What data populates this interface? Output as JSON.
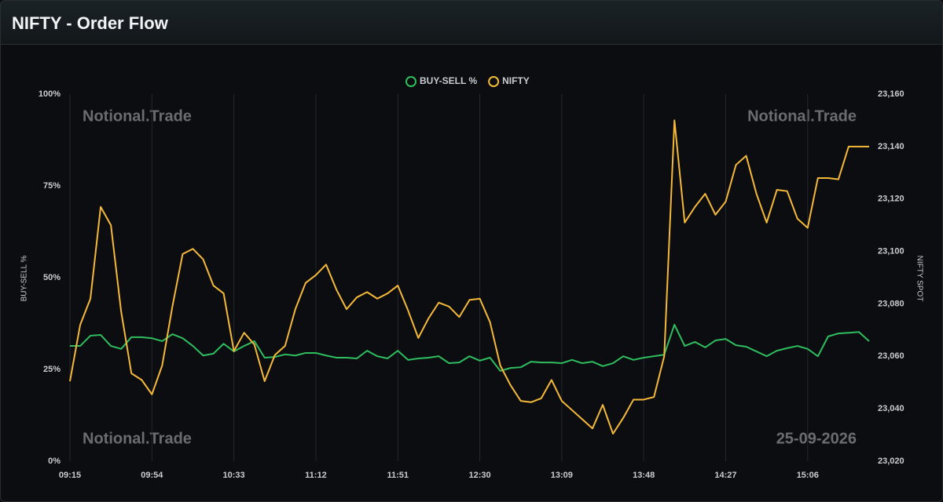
{
  "chart_data": {
    "type": "line",
    "title": "NIFTY - Order Flow",
    "annotations": [
      "Notional.Trade",
      "Notional.Trade",
      "Notional.Trade",
      "25-09-2026"
    ],
    "ylabel": "BUY-SELL %",
    "y2label": "NIFTY SPOT",
    "categories": [
      "09:15",
      null,
      null,
      null,
      null,
      null,
      null,
      null,
      "09:54",
      null,
      null,
      null,
      null,
      null,
      null,
      null,
      "10:33",
      null,
      null,
      null,
      null,
      null,
      null,
      null,
      "11:12",
      null,
      null,
      null,
      null,
      null,
      null,
      null,
      "11:51",
      null,
      null,
      null,
      null,
      null,
      null,
      null,
      "12:30",
      null,
      null,
      null,
      null,
      null,
      null,
      null,
      "13:09",
      null,
      null,
      null,
      null,
      null,
      null,
      null,
      "13:48",
      null,
      null,
      null,
      null,
      null,
      null,
      null,
      "14:27",
      null,
      null,
      null,
      null,
      null,
      null,
      null,
      "15:06",
      null,
      null,
      null,
      null,
      null,
      null
    ],
    "series": [
      {
        "name": "BUY-SELL %",
        "color": "#2ebd5f",
        "values": [
          31.4,
          31.4,
          34.2,
          34.4,
          31.4,
          30.6,
          33.8,
          33.8,
          33.5,
          32.7,
          34.6,
          33.5,
          31.4,
          28.8,
          29.3,
          32,
          29.9,
          31.4,
          32.7,
          28.2,
          28.4,
          29.1,
          28.8,
          29.5,
          29.5,
          28.8,
          28.2,
          28.2,
          28,
          30.1,
          28.6,
          28,
          30.1,
          27.6,
          28,
          28.2,
          28.6,
          26.7,
          26.9,
          28.6,
          27.4,
          28.2,
          24.6,
          25.4,
          25.6,
          27.1,
          26.9,
          26.9,
          26.7,
          27.6,
          26.7,
          27.1,
          25.9,
          26.7,
          28.6,
          27.6,
          28.2,
          28.6,
          29,
          37.2,
          31.4,
          32.5,
          31,
          32.9,
          33.3,
          31.6,
          31.2,
          29.9,
          28.6,
          30.1,
          30.8,
          31.4,
          30.6,
          28.6,
          34,
          34.8,
          35,
          35.2,
          32.7
        ]
      },
      {
        "name": "NIFTY",
        "color": "#f5b93a",
        "axis": "y2",
        "values": [
          23050.5,
          23072,
          23082,
          23117,
          23110,
          23077,
          23053.5,
          23051,
          23045.5,
          23056.5,
          23079,
          23099,
          23101,
          23097,
          23087,
          23084,
          23062,
          23069,
          23064.5,
          23050.5,
          23060.5,
          23064,
          23078,
          23088,
          23091,
          23095,
          23085.5,
          23078,
          23082.5,
          23084.5,
          23082,
          23084,
          23087,
          23077.5,
          23067,
          23074.5,
          23080.5,
          23079,
          23075,
          23081.5,
          23082,
          23073,
          23056.5,
          23049,
          23043,
          23042.5,
          23044,
          23051,
          23043,
          23039.5,
          23036,
          23032.5,
          23041.5,
          23030.5,
          23036.5,
          23043.5,
          23043.5,
          23044.5,
          23060,
          23150,
          23111,
          23117,
          23122,
          23114,
          23119,
          23133,
          23136.5,
          23122,
          23111,
          23123.5,
          23123,
          23112.5,
          23109,
          23128,
          23128,
          23127.5,
          23140,
          23140,
          23140
        ]
      }
    ],
    "ylim": [
      0,
      100
    ],
    "yticks": [
      {
        "value": 0,
        "label": "0%"
      },
      {
        "value": 25,
        "label": "25%"
      },
      {
        "value": 50,
        "label": "50%"
      },
      {
        "value": 75,
        "label": "75%"
      },
      {
        "value": 100,
        "label": "100%"
      }
    ],
    "y2lim": [
      23020,
      23160
    ],
    "y2ticks": [
      {
        "value": 23020,
        "label": "23,020"
      },
      {
        "value": 23040,
        "label": "23,040"
      },
      {
        "value": 23060,
        "label": "23,060"
      },
      {
        "value": 23080,
        "label": "23,080"
      },
      {
        "value": 23100,
        "label": "23,100"
      },
      {
        "value": 23120,
        "label": "23,120"
      },
      {
        "value": 23140,
        "label": "23,140"
      },
      {
        "value": 23160,
        "label": "23,160"
      }
    ],
    "grid": "x",
    "legend": "top"
  }
}
